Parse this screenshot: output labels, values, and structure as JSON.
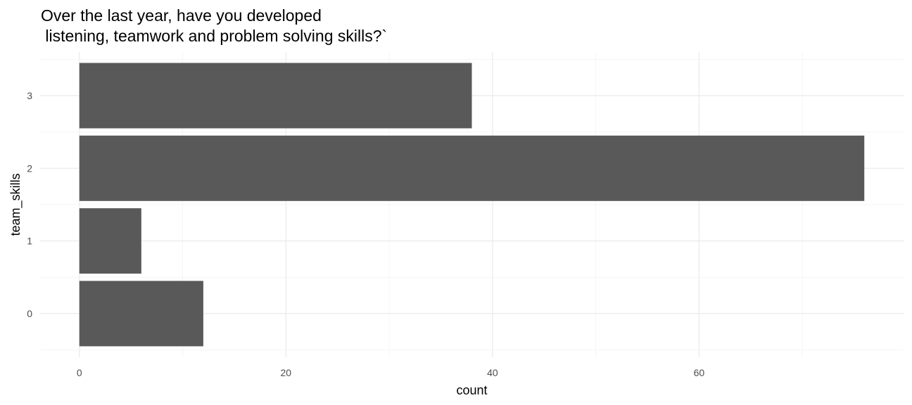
{
  "chart_data": {
    "type": "bar",
    "orientation": "horizontal",
    "title_line1": "Over the last year, have you developed",
    "title_line2": " listening, teamwork and problem solving skills?`",
    "xlabel": "count",
    "ylabel": "team_skills",
    "categories": [
      "0",
      "1",
      "2",
      "3"
    ],
    "values": [
      12,
      6,
      76,
      38
    ],
    "xlim": [
      -3.8,
      79.8
    ],
    "x_ticks": [
      0,
      20,
      40,
      60
    ],
    "x_tick_labels": [
      "0",
      "20",
      "40",
      "60"
    ],
    "grid": true,
    "bar_color": "#595959",
    "grid_major_color": "#ebebeb",
    "grid_minor_color": "#f3f3f3"
  }
}
